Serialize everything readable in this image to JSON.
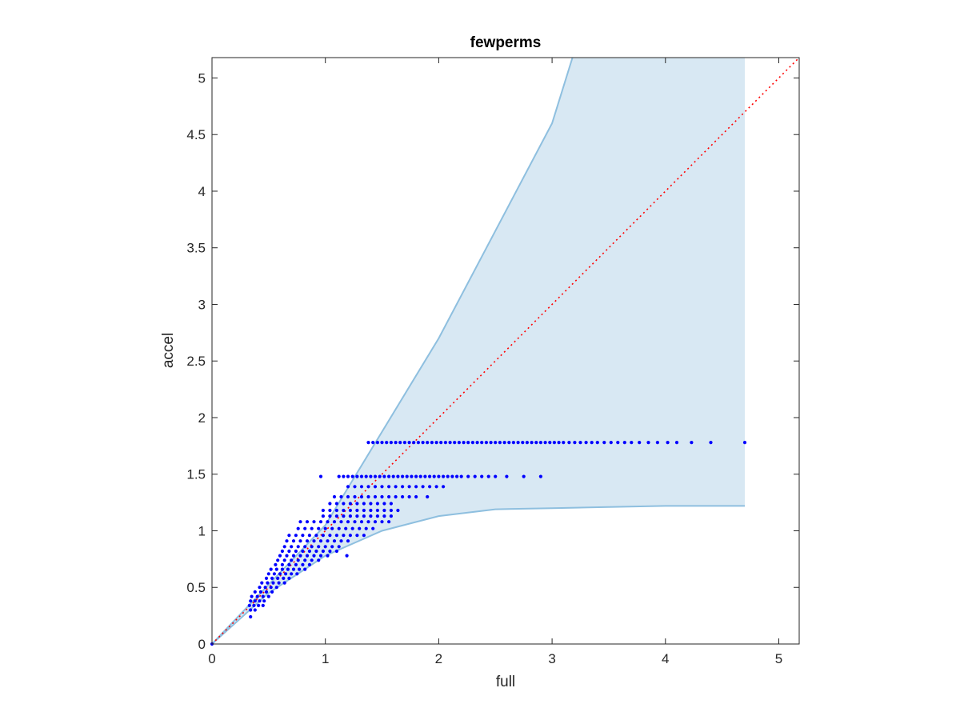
{
  "chart_data": {
    "type": "scatter",
    "title": "fewperms",
    "xlabel": "full",
    "ylabel": "accel",
    "xlim": [
      0,
      5.18
    ],
    "ylim": [
      0,
      5.18
    ],
    "xticks": [
      "0",
      "1",
      "2",
      "3",
      "4",
      "5"
    ],
    "yticks": [
      "0",
      "0.5",
      "1",
      "1.5",
      "2",
      "2.5",
      "3",
      "3.5",
      "4",
      "4.5",
      "5"
    ],
    "grid": false,
    "legend": "none",
    "colors": {
      "points": "#0000ff",
      "band_fill": "#d8e8f3",
      "band_edge": "#8ebfdf",
      "reference_line": "#ff0000",
      "axes": "#262626"
    },
    "reference_line": {
      "type": "y=x",
      "style": "dotted"
    },
    "band": {
      "upper_edge": [
        [
          0,
          0
        ],
        [
          1,
          1.05
        ],
        [
          2,
          2.7
        ],
        [
          3,
          4.6
        ],
        [
          3.18,
          5.18
        ]
      ],
      "lower_edge": [
        [
          0,
          0
        ],
        [
          0.5,
          0.45
        ],
        [
          1,
          0.78
        ],
        [
          1.5,
          1.0
        ],
        [
          2,
          1.13
        ],
        [
          2.5,
          1.19
        ],
        [
          3,
          1.2
        ],
        [
          3.5,
          1.21
        ],
        [
          4,
          1.22
        ],
        [
          4.7,
          1.22
        ]
      ],
      "right_x": 4.7
    },
    "series": [
      {
        "y": 1.78,
        "x": [
          1.38,
          1.42,
          1.46,
          1.5,
          1.54,
          1.58,
          1.62,
          1.66,
          1.7,
          1.74,
          1.78,
          1.82,
          1.86,
          1.9,
          1.94,
          1.98,
          2.02,
          2.06,
          2.1,
          2.14,
          2.18,
          2.22,
          2.26,
          2.3,
          2.34,
          2.38,
          2.42,
          2.46,
          2.5,
          2.54,
          2.58,
          2.62,
          2.66,
          2.7,
          2.74,
          2.78,
          2.82,
          2.86,
          2.9,
          2.94,
          2.98,
          3.02,
          3.06,
          3.1,
          3.15,
          3.2,
          3.25,
          3.3,
          3.35,
          3.4,
          3.46,
          3.52,
          3.58,
          3.64,
          3.7,
          3.77,
          3.85,
          3.93,
          4.02,
          4.1,
          4.23,
          4.4,
          4.7
        ]
      },
      {
        "y": 1.48,
        "x": [
          0.96,
          1.12,
          1.16,
          1.2,
          1.24,
          1.28,
          1.32,
          1.36,
          1.4,
          1.44,
          1.48,
          1.52,
          1.56,
          1.6,
          1.64,
          1.68,
          1.72,
          1.76,
          1.8,
          1.84,
          1.88,
          1.92,
          1.96,
          2.0,
          2.04,
          2.08,
          2.12,
          2.16,
          2.2,
          2.26,
          2.32,
          2.38,
          2.44,
          2.5,
          2.6,
          2.75,
          2.9
        ]
      },
      {
        "y": 1.39,
        "x": [
          1.2,
          1.26,
          1.32,
          1.38,
          1.44,
          1.5,
          1.56,
          1.62,
          1.68,
          1.74,
          1.8,
          1.86,
          1.92,
          1.98,
          2.04
        ]
      },
      {
        "y": 1.3,
        "x": [
          1.08,
          1.14,
          1.2,
          1.26,
          1.32,
          1.38,
          1.44,
          1.5,
          1.56,
          1.62,
          1.68,
          1.74,
          1.8,
          1.9
        ]
      },
      {
        "y": 1.24,
        "x": [
          1.04,
          1.1,
          1.16,
          1.22,
          1.28,
          1.34,
          1.4,
          1.46,
          1.52,
          1.58
        ]
      },
      {
        "y": 1.18,
        "x": [
          0.98,
          1.04,
          1.1,
          1.16,
          1.22,
          1.28,
          1.34,
          1.4,
          1.46,
          1.52,
          1.58,
          1.64
        ]
      },
      {
        "y": 1.13,
        "x": [
          0.98,
          1.04,
          1.1,
          1.16,
          1.22,
          1.28,
          1.34,
          1.4,
          1.46,
          1.52,
          1.58
        ]
      },
      {
        "y": 1.08,
        "x": [
          0.78,
          0.84,
          0.9,
          0.96,
          1.02,
          1.08,
          1.14,
          1.2,
          1.26,
          1.32,
          1.38,
          1.44,
          1.5,
          1.56
        ]
      },
      {
        "y": 1.02,
        "x": [
          0.76,
          0.82,
          0.88,
          0.94,
          1.0,
          1.06,
          1.12,
          1.18,
          1.24,
          1.3,
          1.36,
          1.42
        ]
      },
      {
        "y": 0.96,
        "x": [
          0.68,
          0.74,
          0.8,
          0.86,
          0.92,
          0.98,
          1.04,
          1.1,
          1.16,
          1.22,
          1.28,
          1.34
        ]
      },
      {
        "y": 0.91,
        "x": [
          0.66,
          0.72,
          0.78,
          0.84,
          0.9,
          0.96,
          1.02,
          1.08,
          1.14,
          1.2
        ]
      },
      {
        "y": 0.86,
        "x": [
          0.64,
          0.7,
          0.76,
          0.82,
          0.88,
          0.94,
          1.0,
          1.06,
          1.12
        ]
      },
      {
        "y": 0.82,
        "x": [
          0.62,
          0.68,
          0.74,
          0.8,
          0.86,
          0.92,
          0.98,
          1.04,
          1.1
        ]
      },
      {
        "y": 0.78,
        "x": [
          0.6,
          0.66,
          0.72,
          0.78,
          0.84,
          0.9,
          0.96,
          1.02,
          1.19
        ]
      },
      {
        "y": 0.74,
        "x": [
          0.58,
          0.64,
          0.7,
          0.76,
          0.82,
          0.88,
          0.94
        ]
      },
      {
        "y": 0.7,
        "x": [
          0.56,
          0.62,
          0.68,
          0.74,
          0.8,
          0.86
        ]
      },
      {
        "y": 0.66,
        "x": [
          0.52,
          0.57,
          0.62,
          0.67,
          0.72,
          0.77,
          0.82
        ]
      },
      {
        "y": 0.62,
        "x": [
          0.5,
          0.55,
          0.6,
          0.65,
          0.7,
          0.75
        ]
      },
      {
        "y": 0.58,
        "x": [
          0.48,
          0.53,
          0.58,
          0.63,
          0.68
        ]
      },
      {
        "y": 0.54,
        "x": [
          0.44,
          0.49,
          0.54,
          0.59,
          0.64
        ]
      },
      {
        "y": 0.5,
        "x": [
          0.42,
          0.47,
          0.52,
          0.57
        ]
      },
      {
        "y": 0.46,
        "x": [
          0.38,
          0.43,
          0.48,
          0.53
        ]
      },
      {
        "y": 0.42,
        "x": [
          0.35,
          0.4,
          0.45,
          0.5
        ]
      },
      {
        "y": 0.38,
        "x": [
          0.34,
          0.38,
          0.42,
          0.46
        ]
      },
      {
        "y": 0.34,
        "x": [
          0.33,
          0.37,
          0.41,
          0.45
        ]
      },
      {
        "y": 0.3,
        "x": [
          0.34,
          0.38
        ]
      },
      {
        "y": 0.24,
        "x": [
          0.34
        ]
      },
      {
        "y": 0.0,
        "x": [
          0.0
        ]
      }
    ]
  }
}
